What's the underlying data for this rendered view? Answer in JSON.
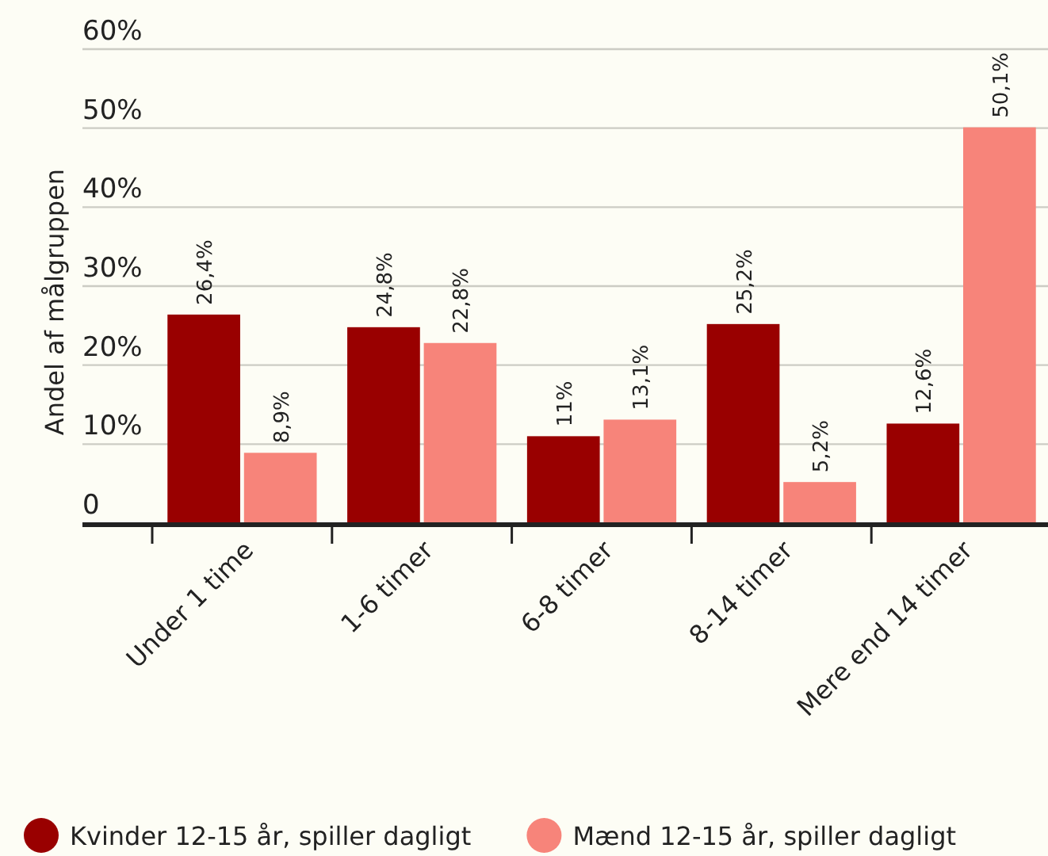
{
  "chart_data": {
    "type": "bar",
    "ylabel": "Andel af målgruppen",
    "categories": [
      "Under 1 time",
      "1-6 timer",
      "6-8 timer",
      "8-14 timer",
      "Mere end 14 timer"
    ],
    "series": [
      {
        "name": "Kvinder 12-15 år, spiller dagligt",
        "color": "#990000",
        "values": [
          26.4,
          24.8,
          11,
          25.2,
          12.6
        ],
        "value_labels": [
          "26,4%",
          "24,8%",
          "11%",
          "25,2%",
          "12,6%"
        ]
      },
      {
        "name": "Mænd 12-15 år, spiller dagligt",
        "color": "#f7847a",
        "values": [
          8.9,
          22.8,
          13.1,
          5.2,
          50.1
        ],
        "value_labels": [
          "8,9%",
          "22,8%",
          "13,1%",
          "5,2%",
          "50,1%"
        ]
      }
    ],
    "ylim": [
      0,
      60
    ],
    "yticks": [
      0,
      {
        "value": 10,
        "label": "10%"
      },
      {
        "value": 20,
        "label": "20%"
      },
      {
        "value": 30,
        "label": "30%"
      },
      {
        "value": 40,
        "label": "40%"
      },
      {
        "value": 50,
        "label": "50%"
      },
      {
        "value": 60,
        "label": "60%"
      }
    ],
    "grid": "y",
    "legend": "bottom"
  }
}
